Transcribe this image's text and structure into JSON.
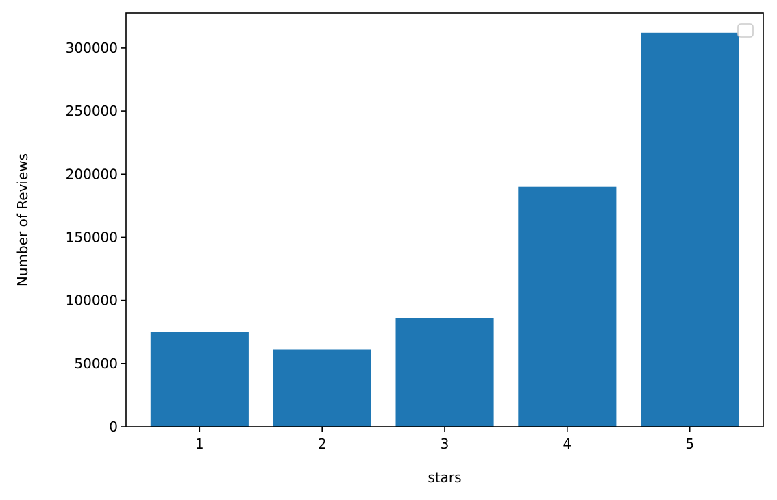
{
  "chart_data": {
    "type": "bar",
    "title": "",
    "xlabel": "stars",
    "ylabel": "Number of Reviews",
    "categories": [
      "1",
      "2",
      "3",
      "4",
      "5"
    ],
    "values": [
      75000,
      61000,
      86000,
      190000,
      312000
    ],
    "ylim": [
      0,
      327600
    ],
    "yticks": [
      0,
      50000,
      100000,
      150000,
      200000,
      250000,
      300000
    ],
    "bar_color": "#1f77b4",
    "grid": false,
    "legend": {
      "placement": "top-right",
      "entries": []
    }
  }
}
